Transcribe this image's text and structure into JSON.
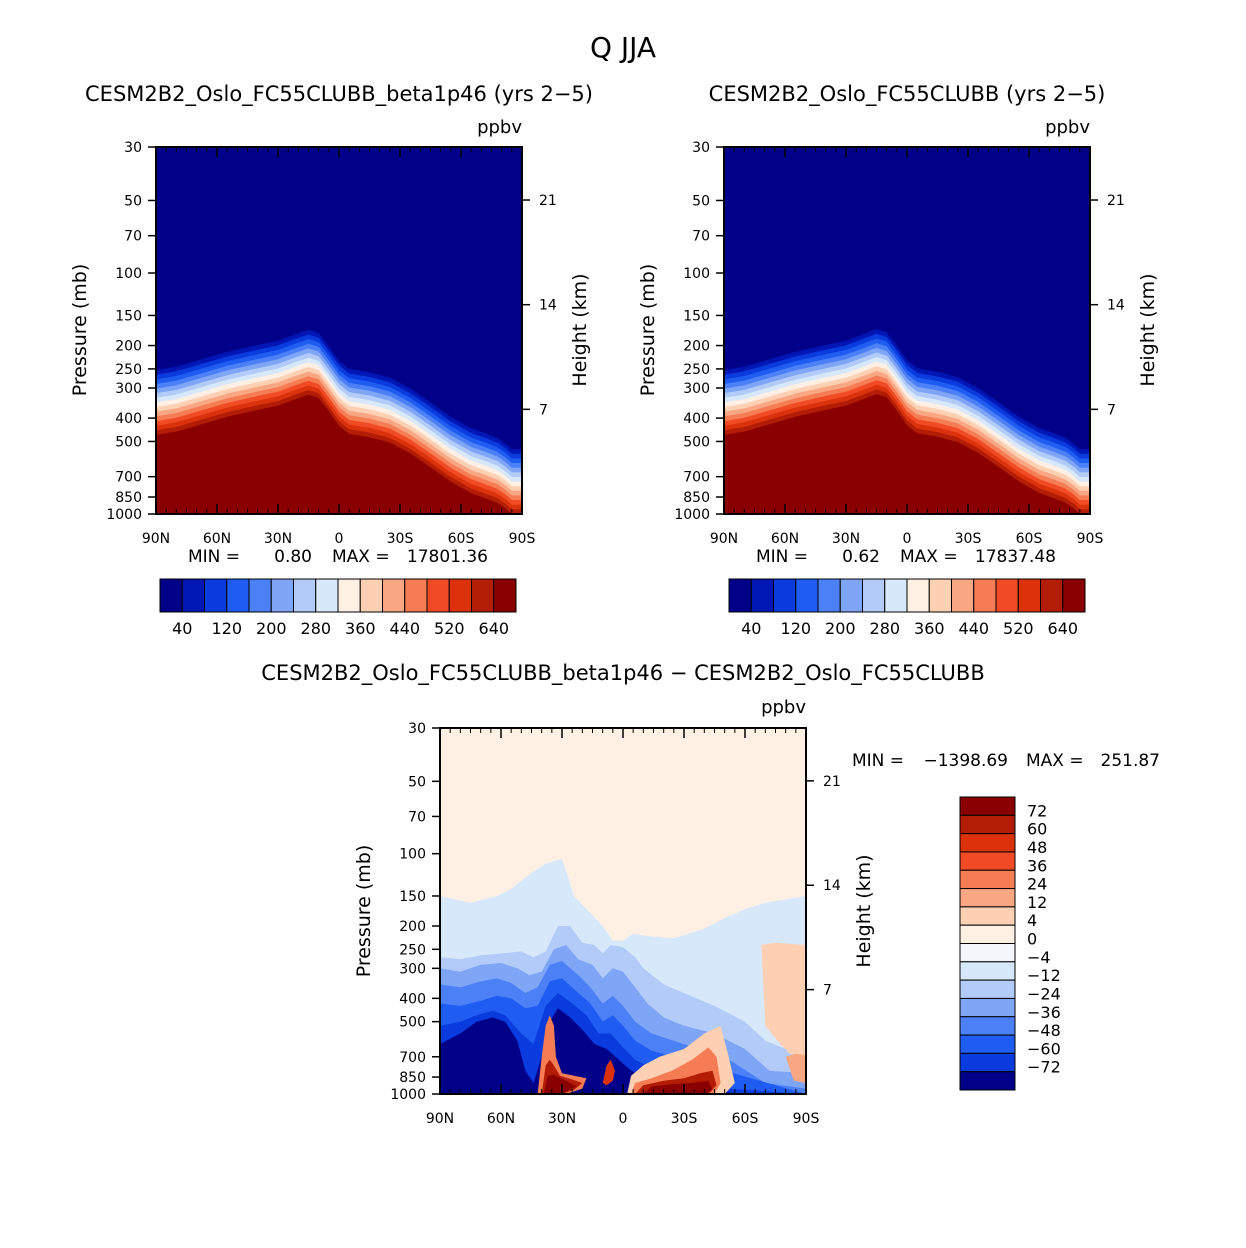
{
  "figure": {
    "title": "Q JJA"
  },
  "chart_data": [
    {
      "type": "heatmap",
      "title": "CESM2B2_Oslo_FC55CLUBB_beta1p46 (yrs 2-5)",
      "units": "ppbv",
      "xlabel": "",
      "ylabel": "Pressure (mb)",
      "y2label": "Height (km)",
      "x_ticks": [
        "90N",
        "60N",
        "30N",
        "0",
        "30S",
        "60S",
        "90S"
      ],
      "y_ticks": [
        30,
        50,
        70,
        100,
        150,
        200,
        250,
        300,
        400,
        500,
        700,
        850,
        1000
      ],
      "y2_ticks": [
        21,
        14,
        7
      ],
      "ylim": [
        1000,
        30
      ],
      "stats": {
        "min_label": "MIN =",
        "min": "0.80",
        "max_label": "MAX =",
        "max": "17801.36"
      },
      "colorbar": {
        "levels": [
          40,
          80,
          120,
          160,
          200,
          240,
          280,
          320,
          360,
          400,
          440,
          480,
          520,
          560,
          640
        ],
        "labels": [
          "40",
          "120",
          "200",
          "280",
          "360",
          "440",
          "520",
          "640"
        ],
        "colors": [
          "#000088",
          "#0017b6",
          "#0a3bde",
          "#1f5cf2",
          "#4c80f6",
          "#7fa5f7",
          "#b2cbf9",
          "#d8e8fb",
          "#fff0e3",
          "#fdcfb3",
          "#f9a683",
          "#f67c53",
          "#f04b25",
          "#dc320b",
          "#b31d05",
          "#8a0000"
        ]
      },
      "field": {
        "boundary_pressure": [
          {
            "lat": 90,
            "p": 470
          },
          {
            "lat": 80,
            "p": 455
          },
          {
            "lat": 70,
            "p": 430
          },
          {
            "lat": 55,
            "p": 395
          },
          {
            "lat": 40,
            "p": 370
          },
          {
            "lat": 30,
            "p": 355
          },
          {
            "lat": 22,
            "p": 335
          },
          {
            "lat": 15,
            "p": 320
          },
          {
            "lat": 10,
            "p": 330
          },
          {
            "lat": 5,
            "p": 375
          },
          {
            "lat": 0,
            "p": 430
          },
          {
            "lat": -5,
            "p": 465
          },
          {
            "lat": -15,
            "p": 480
          },
          {
            "lat": -25,
            "p": 505
          },
          {
            "lat": -35,
            "p": 560
          },
          {
            "lat": -45,
            "p": 640
          },
          {
            "lat": -55,
            "p": 735
          },
          {
            "lat": -65,
            "p": 820
          },
          {
            "lat": -72,
            "p": 860
          },
          {
            "lat": -78,
            "p": 900
          },
          {
            "lat": -82,
            "p": 950
          },
          {
            "lat": -85,
            "p": 1000
          },
          {
            "lat": -90,
            "p": 1000
          }
        ]
      }
    },
    {
      "type": "heatmap",
      "title": "CESM2B2_Oslo_FC55CLUBB (yrs 2-5)",
      "units": "ppbv",
      "xlabel": "",
      "ylabel": "Pressure (mb)",
      "y2label": "Height (km)",
      "x_ticks": [
        "90N",
        "60N",
        "30N",
        "0",
        "30S",
        "60S",
        "90S"
      ],
      "y_ticks": [
        30,
        50,
        70,
        100,
        150,
        200,
        250,
        300,
        400,
        500,
        700,
        850,
        1000
      ],
      "y2_ticks": [
        21,
        14,
        7
      ],
      "ylim": [
        1000,
        30
      ],
      "stats": {
        "min_label": "MIN =",
        "min": "0.62",
        "max_label": "MAX =",
        "max": "17837.48"
      },
      "colorbar": {
        "levels": [
          40,
          80,
          120,
          160,
          200,
          240,
          280,
          320,
          360,
          400,
          440,
          480,
          520,
          560,
          640
        ],
        "labels": [
          "40",
          "120",
          "200",
          "280",
          "360",
          "440",
          "520",
          "640"
        ],
        "colors": [
          "#000088",
          "#0017b6",
          "#0a3bde",
          "#1f5cf2",
          "#4c80f6",
          "#7fa5f7",
          "#b2cbf9",
          "#d8e8fb",
          "#fff0e3",
          "#fdcfb3",
          "#f9a683",
          "#f67c53",
          "#f04b25",
          "#dc320b",
          "#b31d05",
          "#8a0000"
        ]
      },
      "field": {
        "boundary_pressure": [
          {
            "lat": 90,
            "p": 470
          },
          {
            "lat": 80,
            "p": 455
          },
          {
            "lat": 70,
            "p": 430
          },
          {
            "lat": 55,
            "p": 395
          },
          {
            "lat": 40,
            "p": 370
          },
          {
            "lat": 30,
            "p": 355
          },
          {
            "lat": 22,
            "p": 335
          },
          {
            "lat": 15,
            "p": 318
          },
          {
            "lat": 10,
            "p": 328
          },
          {
            "lat": 5,
            "p": 372
          },
          {
            "lat": 0,
            "p": 428
          },
          {
            "lat": -5,
            "p": 462
          },
          {
            "lat": -15,
            "p": 478
          },
          {
            "lat": -25,
            "p": 503
          },
          {
            "lat": -35,
            "p": 558
          },
          {
            "lat": -45,
            "p": 638
          },
          {
            "lat": -55,
            "p": 732
          },
          {
            "lat": -65,
            "p": 818
          },
          {
            "lat": -72,
            "p": 858
          },
          {
            "lat": -78,
            "p": 898
          },
          {
            "lat": -82,
            "p": 948
          },
          {
            "lat": -85,
            "p": 1000
          },
          {
            "lat": -90,
            "p": 1000
          }
        ]
      }
    },
    {
      "type": "heatmap",
      "title": "CESM2B2_Oslo_FC55CLUBB_beta1p46 - CESM2B2_Oslo_FC55CLUBB",
      "units": "ppbv",
      "xlabel": "",
      "ylabel": "Pressure (mb)",
      "y2label": "Height (km)",
      "x_ticks": [
        "90N",
        "60N",
        "30N",
        "0",
        "30S",
        "60S",
        "90S"
      ],
      "y_ticks": [
        30,
        50,
        70,
        100,
        150,
        200,
        250,
        300,
        400,
        500,
        700,
        850,
        1000
      ],
      "y2_ticks": [
        21,
        14,
        7
      ],
      "ylim": [
        1000,
        30
      ],
      "stats": {
        "min_label": "MIN =",
        "min": "-1398.69",
        "max_label": "MAX =",
        "max": "251.87"
      },
      "colorbar": {
        "levels": [
          72,
          60,
          48,
          36,
          24,
          12,
          4,
          0,
          -4,
          -12,
          -24,
          -36,
          -48,
          -60,
          -72
        ],
        "labels": [
          "72",
          "60",
          "48",
          "36",
          "24",
          "12",
          "4",
          "0",
          "-4",
          "-12",
          "-24",
          "-36",
          "-48",
          "-60",
          "-72"
        ],
        "colors": [
          "#8a0000",
          "#b31d05",
          "#dc320b",
          "#f04b25",
          "#f67c53",
          "#f9a683",
          "#fdcfb3",
          "#fff0e3",
          "#f3f7fc",
          "#d8e8fb",
          "#b2cbf9",
          "#7fa5f7",
          "#4c80f6",
          "#1f5cf2",
          "#0a3bde",
          "#000088"
        ]
      }
    }
  ]
}
